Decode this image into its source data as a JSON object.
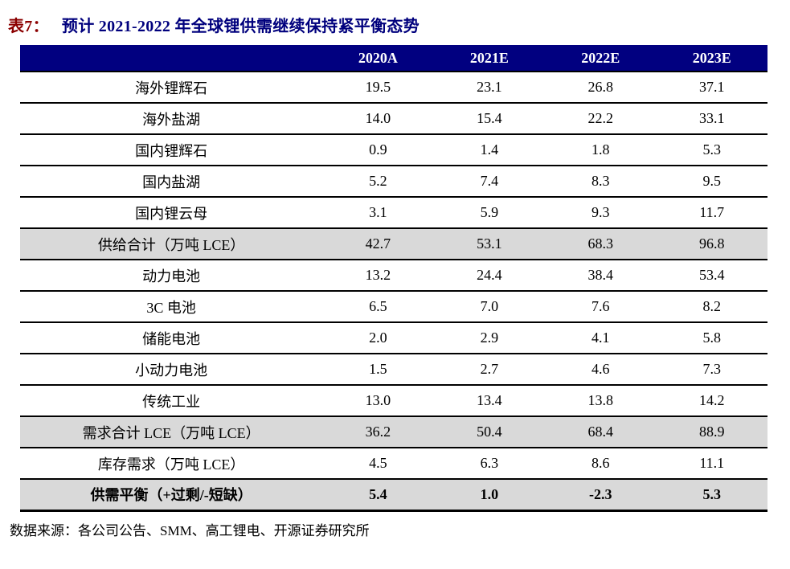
{
  "title": {
    "tag": "表7：",
    "text": "预计 2021-2022 年全球锂供需继续保持紧平衡态势"
  },
  "colors": {
    "header_bg": "#010080",
    "title_navy": "#00007D",
    "title_tag_red": "#8B0000",
    "subtotal_row_bg": "#D9D9D9",
    "row_border": "#000000"
  },
  "source_note": "数据来源：各公司公告、SMM、高工锂电、开源证券研究所",
  "chart_data": {
    "type": "table",
    "title": "预计 2021-2022 年全球锂供需继续保持紧平衡态势",
    "unit": "万吨 LCE",
    "columns": [
      "2020A",
      "2021E",
      "2022E",
      "2023E"
    ],
    "rows": [
      {
        "label": "海外锂辉石",
        "values": [
          "19.5",
          "23.1",
          "26.8",
          "37.1"
        ],
        "style": "normal"
      },
      {
        "label": "海外盐湖",
        "values": [
          "14.0",
          "15.4",
          "22.2",
          "33.1"
        ],
        "style": "normal"
      },
      {
        "label": "国内锂辉石",
        "values": [
          "0.9",
          "1.4",
          "1.8",
          "5.3"
        ],
        "style": "normal"
      },
      {
        "label": "国内盐湖",
        "values": [
          "5.2",
          "7.4",
          "8.3",
          "9.5"
        ],
        "style": "normal"
      },
      {
        "label": "国内锂云母",
        "values": [
          "3.1",
          "5.9",
          "9.3",
          "11.7"
        ],
        "style": "normal"
      },
      {
        "label": "供给合计（万吨 LCE）",
        "values": [
          "42.7",
          "53.1",
          "68.3",
          "96.8"
        ],
        "style": "subtotal"
      },
      {
        "label": "动力电池",
        "values": [
          "13.2",
          "24.4",
          "38.4",
          "53.4"
        ],
        "style": "normal"
      },
      {
        "label": "3C 电池",
        "values": [
          "6.5",
          "7.0",
          "7.6",
          "8.2"
        ],
        "style": "normal"
      },
      {
        "label": "储能电池",
        "values": [
          "2.0",
          "2.9",
          "4.1",
          "5.8"
        ],
        "style": "normal"
      },
      {
        "label": "小动力电池",
        "values": [
          "1.5",
          "2.7",
          "4.6",
          "7.3"
        ],
        "style": "normal"
      },
      {
        "label": "传统工业",
        "values": [
          "13.0",
          "13.4",
          "13.8",
          "14.2"
        ],
        "style": "normal"
      },
      {
        "label": "需求合计 LCE（万吨 LCE）",
        "values": [
          "36.2",
          "50.4",
          "68.4",
          "88.9"
        ],
        "style": "subtotal"
      },
      {
        "label": "库存需求（万吨 LCE）",
        "values": [
          "4.5",
          "6.3",
          "8.6",
          "11.1"
        ],
        "style": "normal"
      },
      {
        "label": "供需平衡（+过剩/-短缺）",
        "values": [
          "5.4",
          "1.0",
          "-2.3",
          "5.3"
        ],
        "style": "total"
      }
    ]
  }
}
